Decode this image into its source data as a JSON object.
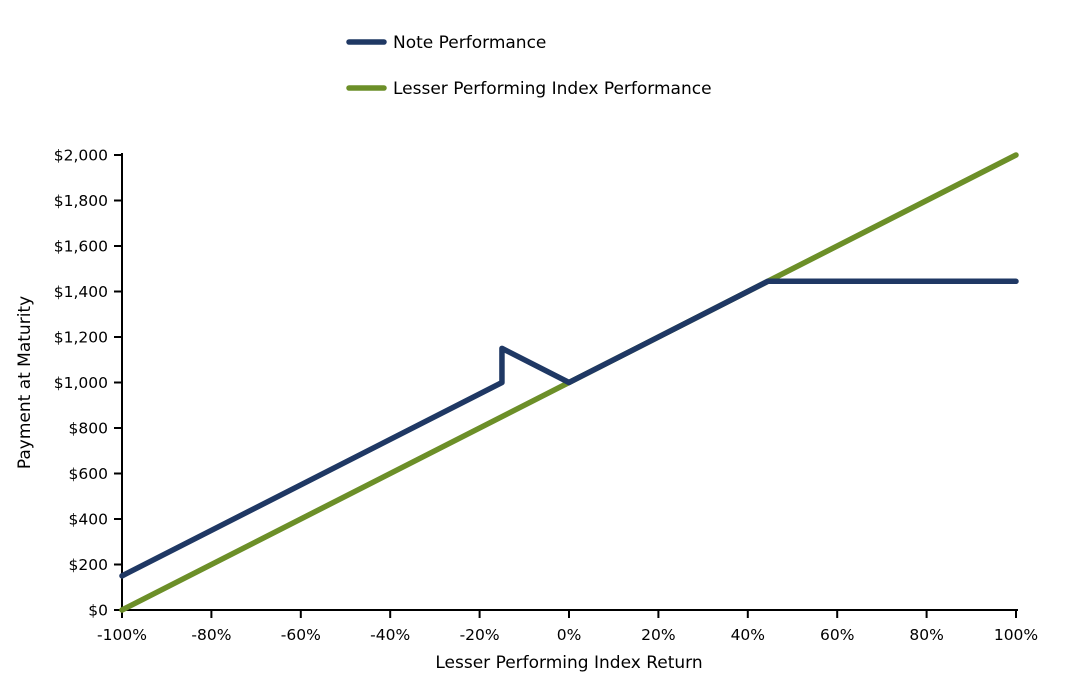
{
  "chart_data": {
    "type": "line",
    "title": "",
    "xlabel": "Lesser Performing Index Return",
    "ylabel": "Payment at Maturity",
    "xlim": [
      -100,
      100
    ],
    "ylim": [
      0,
      2000
    ],
    "grid": false,
    "legend_position": "top",
    "x_ticks": [
      -100,
      -80,
      -60,
      -40,
      -20,
      0,
      20,
      40,
      60,
      80,
      100
    ],
    "x_tick_labels": [
      "-100%",
      "-80%",
      "-60%",
      "-40%",
      "-20%",
      "0%",
      "20%",
      "40%",
      "60%",
      "80%",
      "100%"
    ],
    "y_ticks": [
      0,
      200,
      400,
      600,
      800,
      1000,
      1200,
      1400,
      1600,
      1800,
      2000
    ],
    "y_tick_labels": [
      "$0",
      "$200",
      "$400",
      "$600",
      "$800",
      "$1,000",
      "$1,200",
      "$1,400",
      "$1,600",
      "$1,800",
      "$2,000"
    ],
    "series": [
      {
        "name": "Note Performance",
        "color": "#1F3864",
        "line_width": 5.5,
        "points": [
          [
            -100,
            150
          ],
          [
            -15,
            1000
          ],
          [
            -15,
            1150
          ],
          [
            0,
            1000
          ],
          [
            44.5,
            1445
          ],
          [
            100,
            1445
          ]
        ]
      },
      {
        "name": "Lesser Performing Index Performance",
        "color": "#6C8F28",
        "line_width": 5.5,
        "points": [
          [
            -100,
            0
          ],
          [
            100,
            2000
          ]
        ]
      }
    ],
    "axis_color": "#000000"
  }
}
